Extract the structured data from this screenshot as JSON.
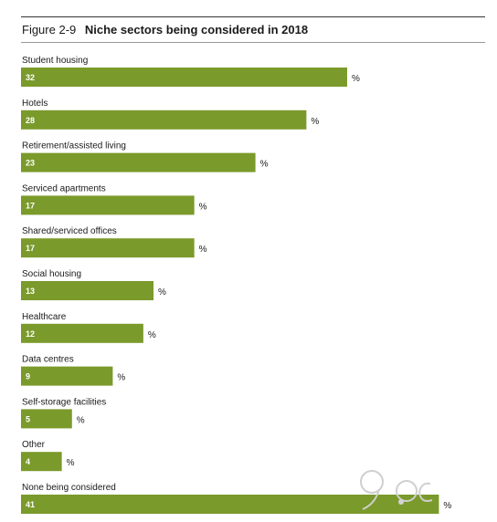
{
  "figure": {
    "number": "Figure 2-9",
    "title": "Niche sectors being considered in 2018"
  },
  "chart_data": {
    "type": "bar",
    "orientation": "horizontal",
    "title": "Niche sectors being considered in 2018",
    "unit": "%",
    "categories": [
      "Student housing",
      "Hotels",
      "Retirement/assisted living",
      "Serviced apartments",
      "Shared/serviced offices",
      "Social housing",
      "Healthcare",
      "Data centres",
      "Self-storage facilities",
      "Other",
      "None being considered"
    ],
    "values": [
      32,
      28,
      23,
      17,
      17,
      13,
      12,
      9,
      5,
      4,
      41
    ],
    "xlim": [
      0,
      41
    ],
    "grid": false,
    "legend": "none",
    "bar_color": "#7a9a2b",
    "label_color": "#ffffff"
  }
}
